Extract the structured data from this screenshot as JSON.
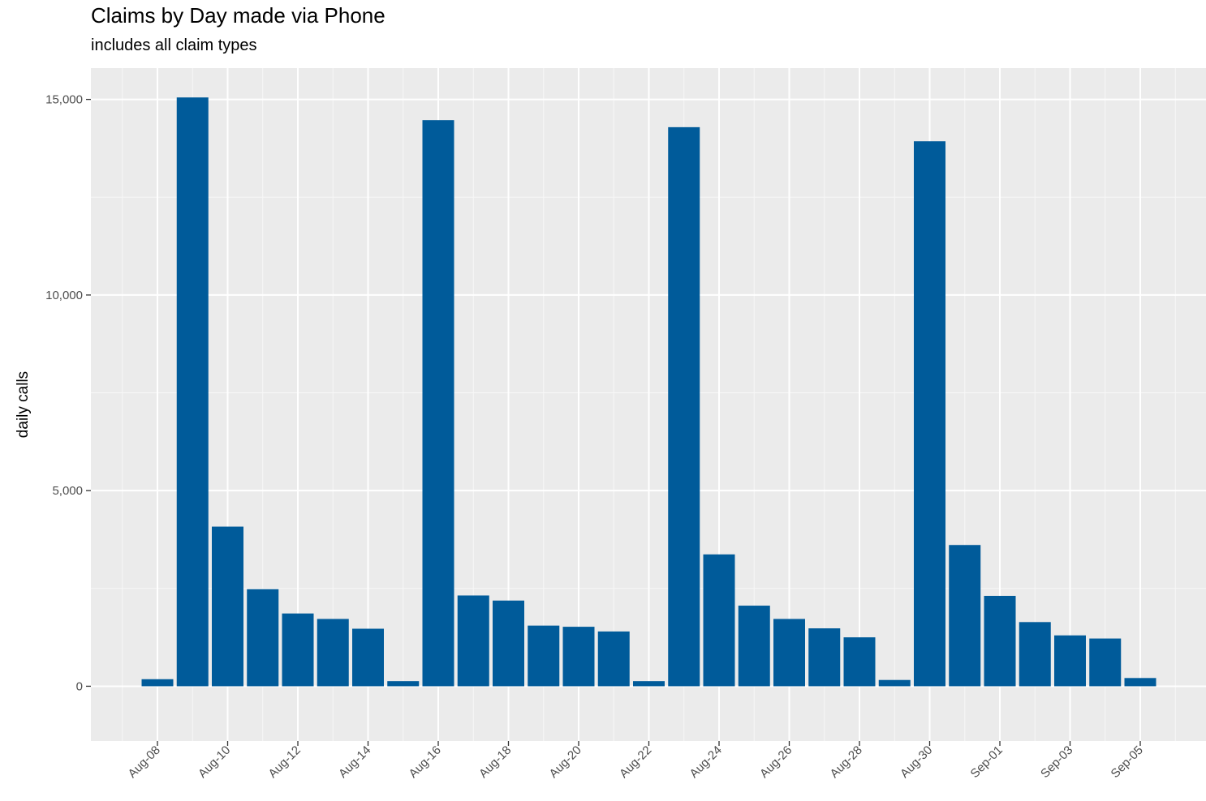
{
  "chart_data": {
    "type": "bar",
    "title": "Claims by Day made via Phone",
    "subtitle": "includes all claim types",
    "xlabel": "",
    "ylabel": "daily calls",
    "ylim": [
      -1400,
      15800
    ],
    "yticks": [
      0,
      5000,
      10000,
      15000
    ],
    "ytick_labels": [
      "0",
      "5,000",
      "10,000",
      "15,000"
    ],
    "xtick_labels": [
      "Aug-08",
      "Aug-10",
      "Aug-12",
      "Aug-14",
      "Aug-16",
      "Aug-18",
      "Aug-20",
      "Aug-22",
      "Aug-24",
      "Aug-26",
      "Aug-28",
      "Aug-30",
      "Sep-01",
      "Sep-03",
      "Sep-05"
    ],
    "categories": [
      "Aug-08",
      "Aug-09",
      "Aug-10",
      "Aug-11",
      "Aug-12",
      "Aug-13",
      "Aug-14",
      "Aug-15",
      "Aug-16",
      "Aug-17",
      "Aug-18",
      "Aug-19",
      "Aug-20",
      "Aug-21",
      "Aug-22",
      "Aug-23",
      "Aug-24",
      "Aug-25",
      "Aug-26",
      "Aug-27",
      "Aug-28",
      "Aug-29",
      "Aug-30",
      "Aug-31",
      "Sep-01",
      "Sep-02",
      "Sep-03",
      "Sep-04",
      "Sep-05"
    ],
    "values": [
      180,
      15050,
      4080,
      2480,
      1860,
      1720,
      1470,
      130,
      14470,
      2320,
      2190,
      1550,
      1520,
      1400,
      130,
      14290,
      3370,
      2060,
      1720,
      1480,
      1250,
      160,
      13930,
      3610,
      2310,
      1640,
      1300,
      1220,
      210
    ],
    "bar_color": "#005b9a",
    "panel_color": "#ebebeb",
    "grid": true,
    "legend": "none"
  }
}
